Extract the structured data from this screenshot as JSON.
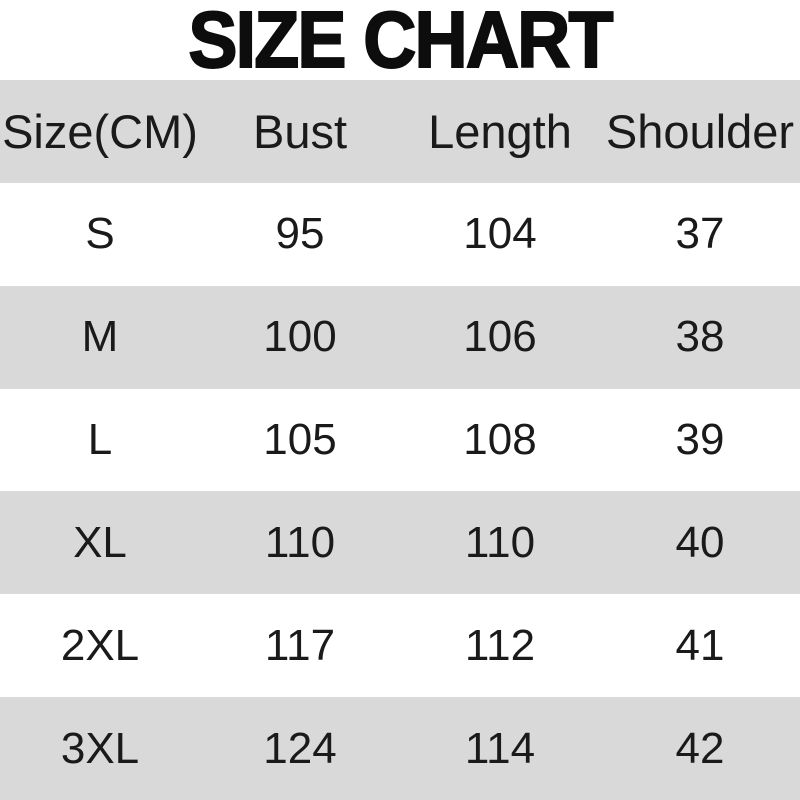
{
  "title": "SIZE CHART",
  "table": {
    "headers": [
      "Size(CM)",
      "Bust",
      "Length",
      "Shoulder"
    ],
    "rows": [
      {
        "size": "S",
        "bust": "95",
        "length": "104",
        "shoulder": "37"
      },
      {
        "size": "M",
        "bust": "100",
        "length": "106",
        "shoulder": "38"
      },
      {
        "size": "L",
        "bust": "105",
        "length": "108",
        "shoulder": "39"
      },
      {
        "size": "XL",
        "bust": "110",
        "length": "110",
        "shoulder": "40"
      },
      {
        "size": "2XL",
        "bust": "117",
        "length": "112",
        "shoulder": "41"
      },
      {
        "size": "3XL",
        "bust": "124",
        "length": "114",
        "shoulder": "42"
      }
    ]
  },
  "colors": {
    "row_shade": "#d9d9d9",
    "text": "#1a1a1a",
    "title": "#0d0d0d",
    "background": "#ffffff"
  },
  "chart_data": {
    "type": "table",
    "title": "SIZE CHART",
    "columns": [
      "Size(CM)",
      "Bust",
      "Length",
      "Shoulder"
    ],
    "rows": [
      [
        "S",
        95,
        104,
        37
      ],
      [
        "M",
        100,
        106,
        38
      ],
      [
        "L",
        105,
        108,
        39
      ],
      [
        "XL",
        110,
        110,
        40
      ],
      [
        "2XL",
        117,
        112,
        41
      ],
      [
        "3XL",
        124,
        114,
        42
      ]
    ]
  }
}
